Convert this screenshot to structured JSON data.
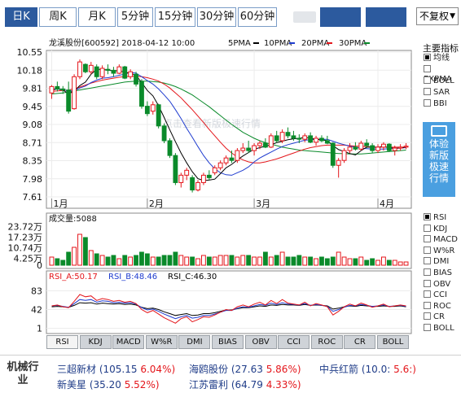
{
  "toolbar": {
    "tabs": [
      {
        "label": "日K",
        "active": true
      },
      {
        "label": "周K",
        "active": false
      },
      {
        "label": "月K",
        "active": false
      },
      {
        "label": "5分钟",
        "active": false
      },
      {
        "label": "15分钟",
        "active": false
      },
      {
        "label": "30分钟",
        "active": false
      },
      {
        "label": "60分钟",
        "active": false
      }
    ],
    "adjust_select": "不复权"
  },
  "chart_data": [
    {
      "type": "candlestick",
      "title": "龙溪股份[600592] 2018-04-12 10:00",
      "ma_legend": [
        "5PMA",
        "10PMA",
        "20PMA",
        "30PMA"
      ],
      "ma_colors": [
        "#000000",
        "#1f3ccf",
        "#e4161b",
        "#0a8a2a"
      ],
      "ylim": [
        7.61,
        10.55
      ],
      "y_ticks": [
        "10.55",
        "10.18",
        "9.81",
        "9.45",
        "9.08",
        "8.71",
        "8.35",
        "7.98",
        "7.61"
      ],
      "x_ticks": [
        {
          "label": "1月",
          "index": 0
        },
        {
          "label": "2月",
          "index": 17
        },
        {
          "label": "3月",
          "index": 36
        },
        {
          "label": "4月",
          "index": 58
        }
      ],
      "candles": [
        [
          9.72,
          9.88,
          9.6,
          9.85
        ],
        [
          9.85,
          9.95,
          9.75,
          9.8
        ],
        [
          9.8,
          9.86,
          9.7,
          9.78
        ],
        [
          9.78,
          9.95,
          9.3,
          9.35
        ],
        [
          9.4,
          10.1,
          9.38,
          10.05
        ],
        [
          10.05,
          10.4,
          10.0,
          10.35
        ],
        [
          10.3,
          10.32,
          10.12,
          10.15
        ],
        [
          10.15,
          10.35,
          10.1,
          10.28
        ],
        [
          10.25,
          10.3,
          10.0,
          10.05
        ],
        [
          10.05,
          10.28,
          10.0,
          10.22
        ],
        [
          10.2,
          10.3,
          10.1,
          10.18
        ],
        [
          10.18,
          10.25,
          10.05,
          10.12
        ],
        [
          10.12,
          10.3,
          10.1,
          10.25
        ],
        [
          10.25,
          10.27,
          10.0,
          10.02
        ],
        [
          10.05,
          10.2,
          10.0,
          10.15
        ],
        [
          10.1,
          10.15,
          9.85,
          9.9
        ],
        [
          9.95,
          10.0,
          9.4,
          9.45
        ],
        [
          9.45,
          9.55,
          9.25,
          9.3
        ],
        [
          9.35,
          9.55,
          9.28,
          9.48
        ],
        [
          9.48,
          9.5,
          9.0,
          9.05
        ],
        [
          9.05,
          9.1,
          8.7,
          8.75
        ],
        [
          8.75,
          8.8,
          8.4,
          8.45
        ],
        [
          8.45,
          8.5,
          7.85,
          7.9
        ],
        [
          7.9,
          8.1,
          7.8,
          8.05
        ],
        [
          8.05,
          8.2,
          7.95,
          8.15
        ],
        [
          8.0,
          8.05,
          7.7,
          7.75
        ],
        [
          7.75,
          7.95,
          7.72,
          7.9
        ],
        [
          7.9,
          8.1,
          7.85,
          8.05
        ],
        [
          8.05,
          8.15,
          7.95,
          8.0
        ],
        [
          8.1,
          8.25,
          8.05,
          8.2
        ],
        [
          8.2,
          8.35,
          8.15,
          8.3
        ],
        [
          8.3,
          8.45,
          8.25,
          8.4
        ],
        [
          8.4,
          8.55,
          8.3,
          8.35
        ],
        [
          8.35,
          8.6,
          8.3,
          8.55
        ],
        [
          8.55,
          8.7,
          8.5,
          8.6
        ],
        [
          8.6,
          8.75,
          8.5,
          8.55
        ],
        [
          8.55,
          8.7,
          8.45,
          8.65
        ],
        [
          8.65,
          8.75,
          8.58,
          8.7
        ],
        [
          8.7,
          8.8,
          8.6,
          8.62
        ],
        [
          8.62,
          8.9,
          8.6,
          8.85
        ],
        [
          8.85,
          8.95,
          8.7,
          8.75
        ],
        [
          8.75,
          8.98,
          8.7,
          8.92
        ],
        [
          8.92,
          9.02,
          8.8,
          8.85
        ],
        [
          8.85,
          8.95,
          8.75,
          8.8
        ],
        [
          8.8,
          8.88,
          8.7,
          8.78
        ],
        [
          8.78,
          8.9,
          8.72,
          8.85
        ],
        [
          8.85,
          8.92,
          8.7,
          8.72
        ],
        [
          8.72,
          8.85,
          8.65,
          8.8
        ],
        [
          8.8,
          8.86,
          8.72,
          8.75
        ],
        [
          8.75,
          8.85,
          8.68,
          8.7
        ],
        [
          8.7,
          8.72,
          8.2,
          8.25
        ],
        [
          8.25,
          8.4,
          8.0,
          8.35
        ],
        [
          8.35,
          8.6,
          8.3,
          8.55
        ],
        [
          8.55,
          8.7,
          8.5,
          8.62
        ],
        [
          8.62,
          8.72,
          8.55,
          8.58
        ],
        [
          8.58,
          8.75,
          8.55,
          8.7
        ],
        [
          8.7,
          8.78,
          8.6,
          8.65
        ],
        [
          8.65,
          8.7,
          8.5,
          8.55
        ],
        [
          8.55,
          8.68,
          8.5,
          8.62
        ],
        [
          8.62,
          8.72,
          8.55,
          8.68
        ],
        [
          8.68,
          8.7,
          8.52,
          8.55
        ],
        [
          8.55,
          8.65,
          8.45,
          8.6
        ],
        [
          8.6,
          8.68,
          8.55,
          8.62
        ],
        [
          8.62,
          8.7,
          8.58,
          8.64
        ]
      ],
      "ma5": [
        9.78,
        9.8,
        9.78,
        9.7,
        9.76,
        9.87,
        9.94,
        10.1,
        10.2,
        10.2,
        10.18,
        10.17,
        10.17,
        10.14,
        10.12,
        10.08,
        9.93,
        9.77,
        9.66,
        9.46,
        9.22,
        8.97,
        8.73,
        8.5,
        8.3,
        8.12,
        7.98,
        7.94,
        7.95,
        7.97,
        8.08,
        8.2,
        8.27,
        8.36,
        8.44,
        8.51,
        8.58,
        8.61,
        8.64,
        8.67,
        8.71,
        8.74,
        8.77,
        8.79,
        8.8,
        8.82,
        8.8,
        8.78,
        8.77,
        8.75,
        8.65,
        8.57,
        8.53,
        8.49,
        8.46,
        8.55,
        8.62,
        8.62,
        8.62,
        8.63,
        8.61,
        8.6,
        8.6,
        8.62
      ],
      "ma10": [
        9.8,
        9.8,
        9.79,
        9.76,
        9.76,
        9.82,
        9.86,
        9.93,
        9.98,
        10.02,
        10.03,
        10.05,
        10.08,
        10.1,
        10.14,
        10.12,
        10.05,
        9.97,
        9.9,
        9.8,
        9.68,
        9.55,
        9.38,
        9.2,
        9.0,
        8.82,
        8.63,
        8.45,
        8.3,
        8.18,
        8.1,
        8.06,
        8.05,
        8.1,
        8.15,
        8.22,
        8.32,
        8.4,
        8.46,
        8.52,
        8.58,
        8.63,
        8.67,
        8.7,
        8.73,
        8.76,
        8.77,
        8.78,
        8.78,
        8.78,
        8.74,
        8.7,
        8.67,
        8.64,
        8.62,
        8.6,
        8.59,
        8.58,
        8.58,
        8.58,
        8.59,
        8.6,
        8.6,
        8.61
      ],
      "ma20": [
        9.75,
        9.76,
        9.77,
        9.78,
        9.8,
        9.84,
        9.88,
        9.92,
        9.95,
        9.98,
        10.0,
        10.02,
        10.04,
        10.05,
        10.06,
        10.06,
        10.05,
        10.03,
        10.0,
        9.96,
        9.9,
        9.82,
        9.72,
        9.62,
        9.5,
        9.38,
        9.25,
        9.12,
        8.98,
        8.85,
        8.72,
        8.6,
        8.5,
        8.42,
        8.36,
        8.32,
        8.3,
        8.3,
        8.32,
        8.35,
        8.38,
        8.42,
        8.46,
        8.5,
        8.54,
        8.58,
        8.61,
        8.63,
        8.65,
        8.66,
        8.66,
        8.66,
        8.66,
        8.65,
        8.64,
        8.64,
        8.63,
        8.62,
        8.62,
        8.62,
        8.62,
        8.62,
        8.62,
        8.62
      ],
      "ma30": [
        9.7,
        9.71,
        9.72,
        9.74,
        9.76,
        9.78,
        9.8,
        9.82,
        9.84,
        9.86,
        9.88,
        9.9,
        9.92,
        9.94,
        9.95,
        9.96,
        9.96,
        9.96,
        9.95,
        9.94,
        9.92,
        9.89,
        9.85,
        9.8,
        9.74,
        9.68,
        9.6,
        9.52,
        9.44,
        9.35,
        9.26,
        9.17,
        9.08,
        9.0,
        8.92,
        8.86,
        8.8,
        8.75,
        8.71,
        8.68,
        8.65,
        8.62,
        8.6,
        8.58,
        8.56,
        8.55,
        8.54,
        8.53,
        8.52,
        8.51,
        8.5,
        8.49,
        8.49,
        8.48,
        8.48,
        8.48,
        8.49,
        8.5,
        8.51,
        8.52,
        8.53,
        8.54,
        8.55,
        8.56
      ]
    },
    {
      "type": "bar",
      "title": "成交量:5088",
      "ylim": [
        0,
        25
      ],
      "y_ticks": [
        "23.72万",
        "17.23万",
        "10.74万",
        "4.25万",
        "0"
      ],
      "values": [
        5,
        4,
        3,
        8,
        11,
        19,
        17,
        9,
        7,
        6,
        5,
        6,
        4,
        6,
        5,
        6,
        8,
        7,
        5,
        5,
        6,
        6,
        8,
        6,
        5,
        5,
        4,
        6,
        5,
        5,
        6,
        6,
        6,
        5,
        6,
        6,
        5,
        5,
        8,
        5,
        6,
        8,
        5,
        5,
        6,
        5,
        5,
        4,
        5,
        4,
        5,
        8,
        5,
        4,
        4,
        5,
        3,
        4,
        3,
        5,
        3,
        3,
        2,
        2
      ]
    },
    {
      "type": "line",
      "legend": [
        "RSI_A:50.17",
        "RSI_B:48.46",
        "RSI_C:46.30"
      ],
      "colors": [
        "#e4161b",
        "#1f3ccf",
        "#000000"
      ],
      "ylim": [
        0,
        100
      ],
      "y_ticks": [
        "83",
        "42",
        "1"
      ],
      "series": [
        {
          "name": "RSI_A",
          "values": [
            50,
            52,
            48,
            46,
            60,
            75,
            70,
            72,
            62,
            66,
            64,
            60,
            62,
            58,
            60,
            55,
            42,
            35,
            40,
            32,
            24,
            18,
            12,
            22,
            26,
            15,
            20,
            26,
            25,
            30,
            36,
            42,
            40,
            48,
            52,
            48,
            54,
            58,
            52,
            62,
            55,
            64,
            56,
            54,
            52,
            58,
            50,
            55,
            52,
            48,
            30,
            38,
            48,
            54,
            50,
            56,
            52,
            47,
            50,
            54,
            48,
            50,
            52,
            50
          ]
        },
        {
          "name": "RSI_B",
          "values": [
            50,
            51,
            49,
            47,
            55,
            64,
            62,
            64,
            58,
            61,
            60,
            57,
            58,
            56,
            57,
            54,
            46,
            41,
            43,
            38,
            32,
            27,
            22,
            26,
            29,
            23,
            25,
            29,
            29,
            32,
            36,
            40,
            40,
            45,
            48,
            47,
            50,
            53,
            51,
            56,
            53,
            57,
            54,
            53,
            52,
            55,
            51,
            53,
            51,
            49,
            38,
            42,
            47,
            51,
            50,
            53,
            51,
            49,
            50,
            52,
            49,
            50,
            51,
            49
          ]
        },
        {
          "name": "RSI_C",
          "values": [
            48,
            49,
            48,
            47,
            51,
            57,
            56,
            57,
            54,
            56,
            55,
            54,
            55,
            53,
            54,
            52,
            47,
            44,
            45,
            42,
            37,
            33,
            29,
            31,
            33,
            29,
            30,
            33,
            33,
            35,
            38,
            41,
            41,
            44,
            46,
            46,
            48,
            50,
            49,
            52,
            51,
            53,
            52,
            52,
            51,
            53,
            51,
            52,
            51,
            50,
            43,
            45,
            48,
            50,
            49,
            51,
            50,
            49,
            49,
            50,
            49,
            49,
            50,
            48
          ]
        }
      ]
    }
  ],
  "side": {
    "main_title": "主要指标",
    "main_items": [
      {
        "label": "均线",
        "on": true
      },
      {
        "label": "EXPMA",
        "on": false
      },
      {
        "label": "BOLL",
        "on": false
      },
      {
        "label": "SAR",
        "on": false
      },
      {
        "label": "BBI",
        "on": false
      }
    ],
    "sub_items": [
      {
        "label": "RSI",
        "on": true
      },
      {
        "label": "KDJ",
        "on": false
      },
      {
        "label": "MACD",
        "on": false
      },
      {
        "label": "W%R",
        "on": false
      },
      {
        "label": "DMI",
        "on": false
      },
      {
        "label": "BIAS",
        "on": false
      },
      {
        "label": "OBV",
        "on": false
      },
      {
        "label": "CCI",
        "on": false
      },
      {
        "label": "ROC",
        "on": false
      },
      {
        "label": "CR",
        "on": false
      },
      {
        "label": "BOLL",
        "on": false
      }
    ],
    "promo_lines": [
      "体验",
      "新版",
      "极速",
      "行情"
    ]
  },
  "watermark": "点击查看新版极速行情",
  "indicator_tabs": [
    "RSI",
    "KDJ",
    "MACD",
    "W%R",
    "DMI",
    "BIAS",
    "OBV",
    "CCI",
    "ROC",
    "CR",
    "BOLL"
  ],
  "industry": {
    "label": "机械行业",
    "stocks": [
      {
        "name": "三超新材",
        "price": "(105.15",
        "pct": "6.04%)"
      },
      {
        "name": "海鸥股份",
        "price": "(27.63",
        "pct": "5.86%)"
      },
      {
        "name": "中兵红箭",
        "price": "(10.0:",
        "pct": "5.6:)"
      },
      {
        "name": "新美星",
        "price": "(35.20",
        "pct": "5.52%)"
      },
      {
        "name": "江苏雷利",
        "price": "(64.79",
        "pct": "4.33%)"
      }
    ]
  }
}
